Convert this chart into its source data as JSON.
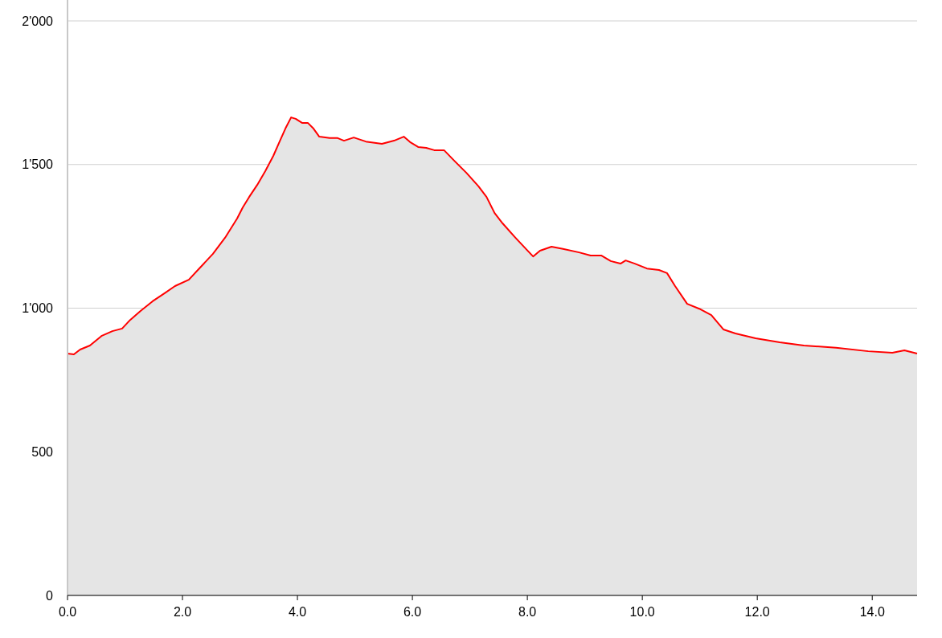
{
  "chart_data": {
    "type": "area",
    "x": [
      0,
      0.11,
      0.22,
      0.39,
      0.59,
      0.78,
      0.95,
      1.09,
      1.27,
      1.48,
      1.69,
      1.87,
      2.11,
      2.32,
      2.53,
      2.74,
      2.95,
      3.05,
      3.16,
      3.3,
      3.44,
      3.58,
      3.69,
      3.79,
      3.89,
      3.97,
      4.08,
      4.18,
      4.28,
      4.38,
      4.56,
      4.7,
      4.81,
      4.98,
      5.19,
      5.47,
      5.68,
      5.85,
      5.96,
      6.1,
      6.24,
      6.38,
      6.55,
      6.73,
      6.94,
      7.15,
      7.29,
      7.43,
      7.57,
      7.78,
      7.99,
      8.1,
      8.22,
      8.42,
      8.62,
      8.9,
      9.1,
      9.29,
      9.45,
      9.62,
      9.71,
      9.87,
      10.08,
      10.29,
      10.43,
      10.57,
      10.78,
      10.99,
      11.2,
      11.41,
      11.62,
      11.97,
      12.39,
      12.81,
      13.37,
      13.93,
      14.35,
      14.56,
      14.78
    ],
    "series": [
      {
        "color": "#ff0000",
        "values": [
          842,
          839,
          856,
          870,
          903,
          920,
          929,
          959,
          990,
          1024,
          1052,
          1077,
          1099,
          1144,
          1189,
          1245,
          1312,
          1351,
          1387,
          1429,
          1477,
          1530,
          1580,
          1625,
          1664,
          1659,
          1645,
          1645,
          1625,
          1597,
          1592,
          1592,
          1583,
          1594,
          1580,
          1572,
          1583,
          1597,
          1578,
          1561,
          1558,
          1550,
          1550,
          1513,
          1471,
          1424,
          1387,
          1331,
          1295,
          1248,
          1203,
          1180,
          1200,
          1214,
          1206,
          1194,
          1183,
          1183,
          1164,
          1155,
          1166,
          1155,
          1138,
          1133,
          1122,
          1077,
          1015,
          998,
          976,
          926,
          912,
          895,
          881,
          870,
          862,
          850,
          845,
          853,
          842
        ]
      }
    ],
    "xlim": [
      0,
      14.78
    ],
    "xticks": [
      {
        "value": 0,
        "label": "0.0"
      },
      {
        "value": 2,
        "label": "2.0"
      },
      {
        "value": 4,
        "label": "4.0"
      },
      {
        "value": 6,
        "label": "6.0"
      },
      {
        "value": 8,
        "label": "8.0"
      },
      {
        "value": 10,
        "label": "10.0"
      },
      {
        "value": 12,
        "label": "12.0"
      },
      {
        "value": 14,
        "label": "14.0"
      }
    ],
    "ylim": [
      0,
      2000
    ],
    "yticks": [
      0,
      500,
      {
        "value": 1000,
        "label": "1'000"
      },
      {
        "value": 1500,
        "label": "1'500"
      },
      {
        "value": 2000,
        "label": "2'000"
      }
    ],
    "grid": "y"
  }
}
